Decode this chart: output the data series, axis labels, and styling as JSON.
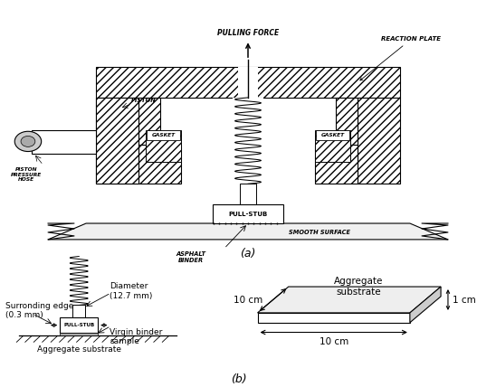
{
  "bg_color": "#ffffff",
  "fig_width": 5.48,
  "fig_height": 4.28,
  "dpi": 100,
  "label_a": "(a)",
  "label_b": "(b)",
  "text_pulling_force": "PULLING FORCE",
  "text_reaction_plate": "REACTION PLATE",
  "text_piston": "PISTON",
  "text_gasket1": "GASKET",
  "text_gasket2": "GASKET",
  "text_piston_pressure": "PISTON\nPRESSURE\nHOSE",
  "text_pull_stub": "PULL-STUB",
  "text_smooth_surface": "SMOOTH SURFACE",
  "text_asphalt_binder": "ASPHALT\nBINDER",
  "text_surrounding_edge": "Surronding edge\n(0.3 mm)",
  "text_diameter": "Diameter\n(12.7 mm)",
  "text_virgin_binder": "Virgin binder\nsample",
  "text_pull_stub_b": "PULL-STUB",
  "text_agg_substrate_b": "Aggregate substrate",
  "text_agg_substrate_3d": "Aggregate\nsubstrate",
  "text_10cm_side": "10 cm",
  "text_10cm_bottom": "10 cm",
  "text_1cm": "1 cm"
}
